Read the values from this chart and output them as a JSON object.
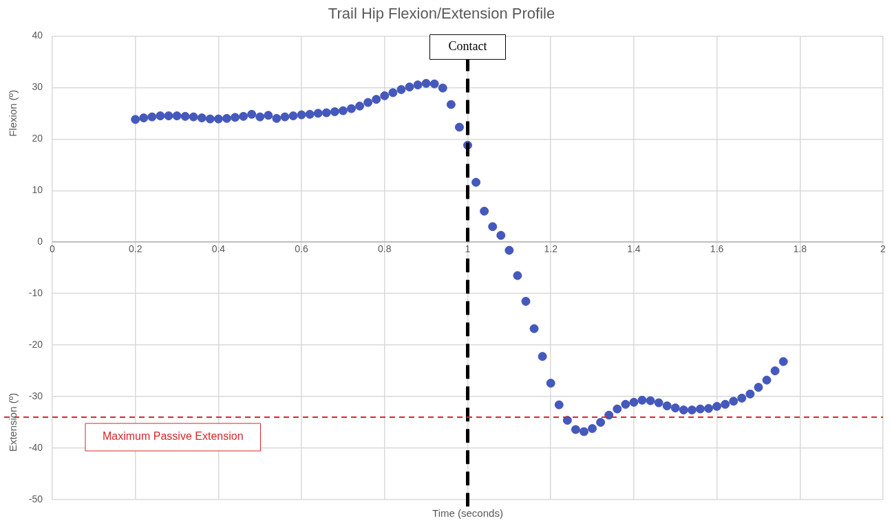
{
  "chart_data": {
    "type": "scatter",
    "title": "Trail Hip Flexion/Extension Profile",
    "xlabel": "Time (seconds)",
    "ylabel": "Flexion (º)",
    "annotations": [
      "Extension (º)"
    ],
    "x": [
      0.2,
      0.22,
      0.24,
      0.26,
      0.28,
      0.3,
      0.32,
      0.34,
      0.36,
      0.38,
      0.4,
      0.42,
      0.44,
      0.46,
      0.48,
      0.5,
      0.52,
      0.54,
      0.56,
      0.58,
      0.6,
      0.62,
      0.64,
      0.66,
      0.68,
      0.7,
      0.72,
      0.74,
      0.76,
      0.78,
      0.8,
      0.82,
      0.84,
      0.86,
      0.88,
      0.9,
      0.92,
      0.94,
      0.96,
      0.98,
      1.0,
      1.02,
      1.04,
      1.06,
      1.08,
      1.1,
      1.12,
      1.14,
      1.16,
      1.18,
      1.2,
      1.22,
      1.24,
      1.26,
      1.28,
      1.3,
      1.32,
      1.34,
      1.36,
      1.38,
      1.4,
      1.42,
      1.44,
      1.46,
      1.48,
      1.5,
      1.52,
      1.54,
      1.56,
      1.58,
      1.6,
      1.62,
      1.64,
      1.66,
      1.68,
      1.7,
      1.72,
      1.74,
      1.76
    ],
    "series": [
      {
        "color": "#4558bb",
        "values": [
          23.8,
          24.1,
          24.3,
          24.5,
          24.5,
          24.5,
          24.4,
          24.3,
          24.1,
          23.9,
          23.9,
          24.0,
          24.2,
          24.4,
          24.8,
          24.3,
          24.6,
          24.0,
          24.3,
          24.5,
          24.7,
          24.8,
          25.0,
          25.1,
          25.3,
          25.5,
          25.9,
          26.4,
          27.1,
          27.7,
          28.4,
          29.0,
          29.6,
          30.1,
          30.5,
          30.8,
          30.7,
          29.9,
          26.7,
          22.3,
          18.8,
          11.6,
          6.0,
          3.0,
          1.3,
          -1.6,
          -6.5,
          -11.5,
          -16.8,
          -22.2,
          -27.4,
          -31.6,
          -34.6,
          -36.4,
          -36.8,
          -36.2,
          -35.0,
          -33.6,
          -32.4,
          -31.5,
          -31.1,
          -30.7,
          -30.8,
          -31.2,
          -31.8,
          -32.2,
          -32.6,
          -32.6,
          -32.4,
          -32.3,
          -31.9,
          -31.5,
          -30.9,
          -30.3,
          -29.5,
          -28.2,
          -26.8,
          -25.0,
          -23.2
        ]
      }
    ],
    "xlim": [
      0,
      2
    ],
    "xticks": [
      0,
      0.2,
      0.4,
      0.6,
      0.8,
      1,
      1.2,
      1.4,
      1.6,
      1.8,
      2
    ],
    "ylim": [
      -50,
      40
    ],
    "yticks": [
      -50,
      -40,
      -30,
      -20,
      -10,
      0,
      10,
      20,
      30,
      40
    ],
    "ref_lines": [
      {
        "axis": "x",
        "value": 1,
        "label": "Contact",
        "color": "#000000",
        "line_style": "dashed"
      },
      {
        "axis": "y",
        "value": -34,
        "label": "Maximum Passive Extension",
        "color": "#d9262b",
        "line_style": "dashed"
      }
    ],
    "grid": true,
    "legend": false,
    "marker": "circle"
  }
}
